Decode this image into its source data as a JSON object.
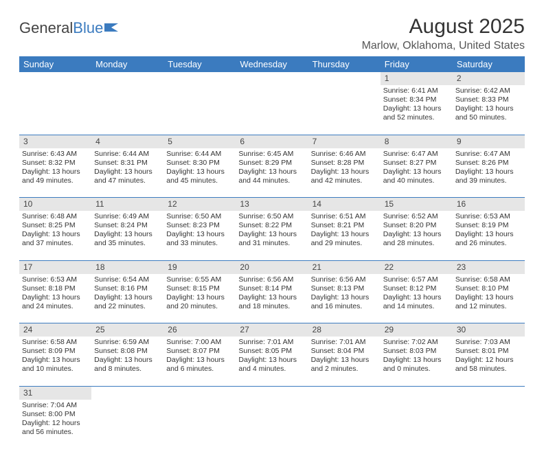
{
  "brand": {
    "part1": "General",
    "part2": "Blue"
  },
  "title": "August 2025",
  "location": "Marlow, Oklahoma, United States",
  "colors": {
    "header_bg": "#3b7bbf",
    "header_text": "#ffffff",
    "daynum_bg": "#e6e6e6",
    "divider": "#3b7bbf",
    "body_text": "#333333"
  },
  "dayNames": [
    "Sunday",
    "Monday",
    "Tuesday",
    "Wednesday",
    "Thursday",
    "Friday",
    "Saturday"
  ],
  "weeks": [
    {
      "nums": [
        "",
        "",
        "",
        "",
        "",
        "1",
        "2"
      ],
      "cells": [
        null,
        null,
        null,
        null,
        null,
        {
          "sunrise": "6:41 AM",
          "sunset": "8:34 PM",
          "dayH": 13,
          "dayM": 52
        },
        {
          "sunrise": "6:42 AM",
          "sunset": "8:33 PM",
          "dayH": 13,
          "dayM": 50
        }
      ]
    },
    {
      "nums": [
        "3",
        "4",
        "5",
        "6",
        "7",
        "8",
        "9"
      ],
      "cells": [
        {
          "sunrise": "6:43 AM",
          "sunset": "8:32 PM",
          "dayH": 13,
          "dayM": 49
        },
        {
          "sunrise": "6:44 AM",
          "sunset": "8:31 PM",
          "dayH": 13,
          "dayM": 47
        },
        {
          "sunrise": "6:44 AM",
          "sunset": "8:30 PM",
          "dayH": 13,
          "dayM": 45
        },
        {
          "sunrise": "6:45 AM",
          "sunset": "8:29 PM",
          "dayH": 13,
          "dayM": 44
        },
        {
          "sunrise": "6:46 AM",
          "sunset": "8:28 PM",
          "dayH": 13,
          "dayM": 42
        },
        {
          "sunrise": "6:47 AM",
          "sunset": "8:27 PM",
          "dayH": 13,
          "dayM": 40
        },
        {
          "sunrise": "6:47 AM",
          "sunset": "8:26 PM",
          "dayH": 13,
          "dayM": 39
        }
      ]
    },
    {
      "nums": [
        "10",
        "11",
        "12",
        "13",
        "14",
        "15",
        "16"
      ],
      "cells": [
        {
          "sunrise": "6:48 AM",
          "sunset": "8:25 PM",
          "dayH": 13,
          "dayM": 37
        },
        {
          "sunrise": "6:49 AM",
          "sunset": "8:24 PM",
          "dayH": 13,
          "dayM": 35
        },
        {
          "sunrise": "6:50 AM",
          "sunset": "8:23 PM",
          "dayH": 13,
          "dayM": 33
        },
        {
          "sunrise": "6:50 AM",
          "sunset": "8:22 PM",
          "dayH": 13,
          "dayM": 31
        },
        {
          "sunrise": "6:51 AM",
          "sunset": "8:21 PM",
          "dayH": 13,
          "dayM": 29
        },
        {
          "sunrise": "6:52 AM",
          "sunset": "8:20 PM",
          "dayH": 13,
          "dayM": 28
        },
        {
          "sunrise": "6:53 AM",
          "sunset": "8:19 PM",
          "dayH": 13,
          "dayM": 26
        }
      ]
    },
    {
      "nums": [
        "17",
        "18",
        "19",
        "20",
        "21",
        "22",
        "23"
      ],
      "cells": [
        {
          "sunrise": "6:53 AM",
          "sunset": "8:18 PM",
          "dayH": 13,
          "dayM": 24
        },
        {
          "sunrise": "6:54 AM",
          "sunset": "8:16 PM",
          "dayH": 13,
          "dayM": 22
        },
        {
          "sunrise": "6:55 AM",
          "sunset": "8:15 PM",
          "dayH": 13,
          "dayM": 20
        },
        {
          "sunrise": "6:56 AM",
          "sunset": "8:14 PM",
          "dayH": 13,
          "dayM": 18
        },
        {
          "sunrise": "6:56 AM",
          "sunset": "8:13 PM",
          "dayH": 13,
          "dayM": 16
        },
        {
          "sunrise": "6:57 AM",
          "sunset": "8:12 PM",
          "dayH": 13,
          "dayM": 14
        },
        {
          "sunrise": "6:58 AM",
          "sunset": "8:10 PM",
          "dayH": 13,
          "dayM": 12
        }
      ]
    },
    {
      "nums": [
        "24",
        "25",
        "26",
        "27",
        "28",
        "29",
        "30"
      ],
      "cells": [
        {
          "sunrise": "6:58 AM",
          "sunset": "8:09 PM",
          "dayH": 13,
          "dayM": 10
        },
        {
          "sunrise": "6:59 AM",
          "sunset": "8:08 PM",
          "dayH": 13,
          "dayM": 8
        },
        {
          "sunrise": "7:00 AM",
          "sunset": "8:07 PM",
          "dayH": 13,
          "dayM": 6
        },
        {
          "sunrise": "7:01 AM",
          "sunset": "8:05 PM",
          "dayH": 13,
          "dayM": 4
        },
        {
          "sunrise": "7:01 AM",
          "sunset": "8:04 PM",
          "dayH": 13,
          "dayM": 2
        },
        {
          "sunrise": "7:02 AM",
          "sunset": "8:03 PM",
          "dayH": 13,
          "dayM": 0
        },
        {
          "sunrise": "7:03 AM",
          "sunset": "8:01 PM",
          "dayH": 12,
          "dayM": 58
        }
      ]
    },
    {
      "nums": [
        "31",
        "",
        "",
        "",
        "",
        "",
        ""
      ],
      "cells": [
        {
          "sunrise": "7:04 AM",
          "sunset": "8:00 PM",
          "dayH": 12,
          "dayM": 56
        },
        null,
        null,
        null,
        null,
        null,
        null
      ]
    }
  ],
  "labels": {
    "sunrise": "Sunrise:",
    "sunset": "Sunset:",
    "daylight": "Daylight:",
    "hours": "hours",
    "and": "and",
    "minutes": "minutes."
  }
}
